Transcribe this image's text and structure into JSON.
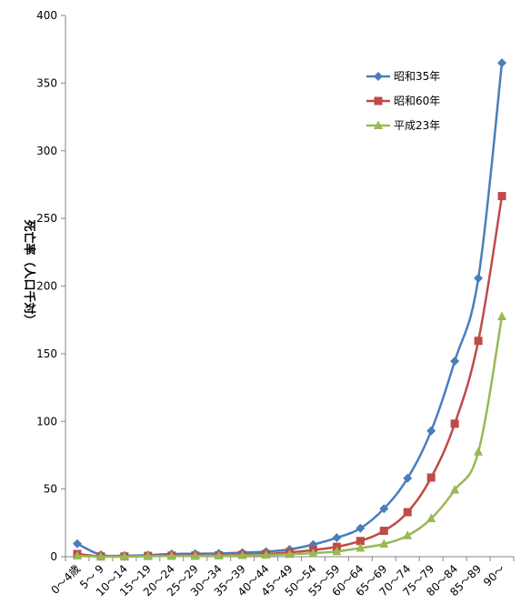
{
  "chart_data": {
    "type": "line",
    "ylabel": "死亡率（人口千対）",
    "ylim": [
      0,
      400
    ],
    "yticks": [
      0,
      50,
      100,
      150,
      200,
      250,
      300,
      350,
      400
    ],
    "categories": [
      "0～4歳",
      "5～ 9",
      "10～14",
      "15～19",
      "20～24",
      "25～29",
      "30～34",
      "35～39",
      "40～44",
      "45～49",
      "50～54",
      "55～59",
      "60～64",
      "65～69",
      "70～74",
      "75～79",
      "80～84",
      "85～89",
      "90～"
    ],
    "legend_position": "top-right",
    "grid": false,
    "series": [
      {
        "name": "昭和35年",
        "color": "#4a7ebb",
        "marker": "diamond",
        "values": [
          9.6,
          1.4,
          0.8,
          1.2,
          2.0,
          2.2,
          2.4,
          3.0,
          3.7,
          5.4,
          9.0,
          14.0,
          21.0,
          35.5,
          58.0,
          93.0,
          144.5,
          205.8,
          365.0
        ]
      },
      {
        "name": "昭和60年",
        "color": "#be4b48",
        "marker": "square",
        "values": [
          2.0,
          0.2,
          0.2,
          0.6,
          0.8,
          0.8,
          1.0,
          1.4,
          2.0,
          3.2,
          4.9,
          7.3,
          11.6,
          19.1,
          32.9,
          58.5,
          98.3,
          159.5,
          266.5
        ]
      },
      {
        "name": "平成23年",
        "color": "#98b954",
        "marker": "triangle",
        "values": [
          0.6,
          0.1,
          0.1,
          0.3,
          0.5,
          0.6,
          0.7,
          0.9,
          1.2,
          1.8,
          2.6,
          3.9,
          6.4,
          9.4,
          15.6,
          28.2,
          49.3,
          77.5,
          177.5
        ]
      }
    ]
  }
}
